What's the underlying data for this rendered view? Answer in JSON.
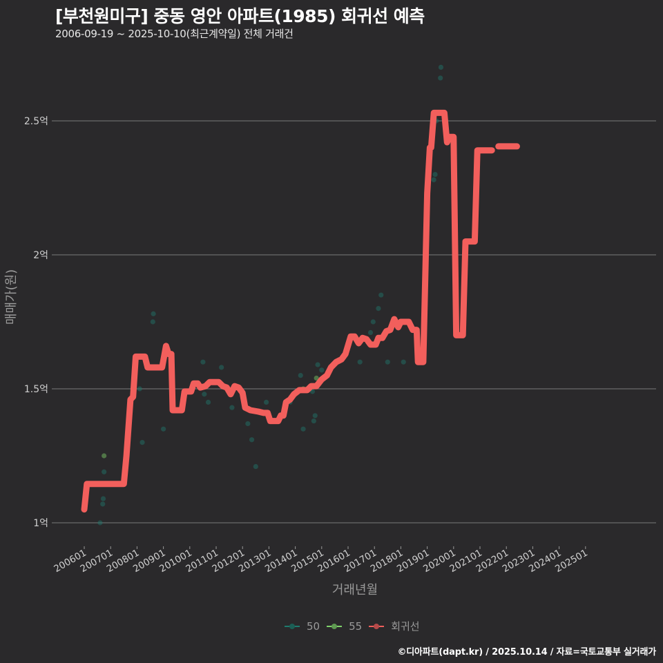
{
  "header": {
    "title": "[부천원미구] 중동 영안 아파트(1985) 회귀선 예측",
    "subtitle": "2006-09-19 ~ 2025-10-10(최근계약일) 전체 거래건"
  },
  "legend": {
    "items": [
      {
        "label": "50",
        "color": "#1f7a6e"
      },
      {
        "label": "55",
        "color": "#7fd36b"
      },
      {
        "label": "회귀선",
        "color": "#f25f5c"
      }
    ]
  },
  "caption": "©디아파트(dapt.kr) / 2025.10.14 / 자료=국토교통부 실거래가",
  "colors": {
    "background": "#2a292b",
    "grid": "#6b6b6b",
    "regression": "#f25f5c",
    "series_50": "#1f7a6e",
    "series_55": "#7fd36b"
  },
  "chart_data": {
    "type": "line",
    "title": "[부천원미구] 중동 영안 아파트(1985) 회귀선 예측",
    "subtitle": "2006-09-19 ~ 2025-10-10(최근계약일) 전체 거래건",
    "xlabel": "거래년월",
    "ylabel": "매매가(원)",
    "ylim": [
      0.9,
      2.78
    ],
    "yticks": [
      1,
      1.5,
      2,
      2.5
    ],
    "ytick_labels": [
      "1억",
      "1.5억",
      "2억",
      "2.5억"
    ],
    "xtick_labels": [
      "200601",
      "200701",
      "200801",
      "200901",
      "201001",
      "201101",
      "201201",
      "201301",
      "201401",
      "201501",
      "201601",
      "201701",
      "201801",
      "201901",
      "202001",
      "202101",
      "202201",
      "202301",
      "202401",
      "202501"
    ],
    "grid": "horizontal major only",
    "legend_position": "bottom",
    "legend_entries": [
      "50",
      "55",
      "회귀선"
    ],
    "series": [
      {
        "name": "회귀선",
        "kind": "line",
        "points": [
          [
            2006.0,
            1.05
          ],
          [
            2006.1,
            1.145
          ],
          [
            2007.3,
            1.145
          ],
          [
            2007.5,
            1.145
          ],
          [
            2007.6,
            1.25
          ],
          [
            2007.75,
            1.46
          ],
          [
            2007.85,
            1.47
          ],
          [
            2007.95,
            1.62
          ],
          [
            2008.3,
            1.62
          ],
          [
            2008.4,
            1.58
          ],
          [
            2008.95,
            1.58
          ],
          [
            2009.1,
            1.66
          ],
          [
            2009.2,
            1.63
          ],
          [
            2009.3,
            1.63
          ],
          [
            2009.35,
            1.42
          ],
          [
            2009.7,
            1.42
          ],
          [
            2009.8,
            1.49
          ],
          [
            2010.05,
            1.49
          ],
          [
            2010.15,
            1.52
          ],
          [
            2010.3,
            1.52
          ],
          [
            2010.4,
            1.505
          ],
          [
            2010.6,
            1.51
          ],
          [
            2010.75,
            1.525
          ],
          [
            2011.1,
            1.525
          ],
          [
            2011.25,
            1.51
          ],
          [
            2011.4,
            1.505
          ],
          [
            2011.55,
            1.48
          ],
          [
            2011.7,
            1.51
          ],
          [
            2011.85,
            1.505
          ],
          [
            2012.0,
            1.485
          ],
          [
            2012.1,
            1.43
          ],
          [
            2012.3,
            1.42
          ],
          [
            2012.6,
            1.415
          ],
          [
            2012.8,
            1.41
          ],
          [
            2012.95,
            1.41
          ],
          [
            2013.05,
            1.38
          ],
          [
            2013.35,
            1.38
          ],
          [
            2013.45,
            1.4
          ],
          [
            2013.55,
            1.4
          ],
          [
            2013.65,
            1.45
          ],
          [
            2013.8,
            1.46
          ],
          [
            2013.95,
            1.48
          ],
          [
            2014.15,
            1.495
          ],
          [
            2014.45,
            1.495
          ],
          [
            2014.6,
            1.51
          ],
          [
            2014.8,
            1.51
          ],
          [
            2015.0,
            1.535
          ],
          [
            2015.2,
            1.55
          ],
          [
            2015.35,
            1.58
          ],
          [
            2015.55,
            1.6
          ],
          [
            2015.75,
            1.61
          ],
          [
            2015.9,
            1.63
          ],
          [
            2016.1,
            1.695
          ],
          [
            2016.25,
            1.695
          ],
          [
            2016.4,
            1.67
          ],
          [
            2016.55,
            1.69
          ],
          [
            2016.7,
            1.685
          ],
          [
            2016.85,
            1.665
          ],
          [
            2017.05,
            1.665
          ],
          [
            2017.15,
            1.69
          ],
          [
            2017.3,
            1.69
          ],
          [
            2017.45,
            1.715
          ],
          [
            2017.6,
            1.72
          ],
          [
            2017.75,
            1.76
          ],
          [
            2017.9,
            1.73
          ],
          [
            2018.0,
            1.75
          ],
          [
            2018.3,
            1.75
          ],
          [
            2018.45,
            1.72
          ],
          [
            2018.6,
            1.72
          ],
          [
            2018.65,
            1.6
          ],
          [
            2018.85,
            1.6
          ],
          [
            2019.0,
            2.23
          ],
          [
            2019.1,
            2.4
          ],
          [
            2019.15,
            2.4
          ],
          [
            2019.25,
            2.53
          ],
          [
            2019.65,
            2.53
          ],
          [
            2019.75,
            2.42
          ],
          [
            2019.85,
            2.44
          ],
          [
            2020.0,
            2.44
          ],
          [
            2020.1,
            1.7
          ],
          [
            2020.35,
            1.7
          ],
          [
            2020.45,
            2.05
          ],
          [
            2020.8,
            2.05
          ],
          [
            2020.9,
            2.39
          ],
          [
            2021.45,
            2.39
          ]
        ]
      },
      {
        "name": "회귀선 (예측 구간)",
        "kind": "line",
        "points": [
          [
            2021.7,
            2.405
          ],
          [
            2022.4,
            2.405
          ]
        ]
      },
      {
        "name": "50",
        "kind": "scatter",
        "points": [
          [
            2006.6,
            1.0
          ],
          [
            2006.7,
            1.07
          ],
          [
            2006.72,
            1.09
          ],
          [
            2006.75,
            1.19
          ],
          [
            2008.1,
            1.5
          ],
          [
            2008.2,
            1.3
          ],
          [
            2008.6,
            1.75
          ],
          [
            2008.62,
            1.78
          ],
          [
            2009.0,
            1.35
          ],
          [
            2010.5,
            1.6
          ],
          [
            2010.55,
            1.48
          ],
          [
            2010.7,
            1.45
          ],
          [
            2011.2,
            1.58
          ],
          [
            2011.6,
            1.43
          ],
          [
            2012.2,
            1.37
          ],
          [
            2012.35,
            1.31
          ],
          [
            2012.5,
            1.21
          ],
          [
            2012.9,
            1.45
          ],
          [
            2013.8,
            1.45
          ],
          [
            2014.2,
            1.55
          ],
          [
            2014.3,
            1.35
          ],
          [
            2014.5,
            1.5
          ],
          [
            2014.6,
            1.5
          ],
          [
            2014.65,
            1.49
          ],
          [
            2014.7,
            1.38
          ],
          [
            2014.75,
            1.4
          ],
          [
            2014.85,
            1.59
          ],
          [
            2015.0,
            1.57
          ],
          [
            2016.45,
            1.6
          ],
          [
            2016.85,
            1.71
          ],
          [
            2016.95,
            1.75
          ],
          [
            2017.15,
            1.8
          ],
          [
            2017.25,
            1.85
          ],
          [
            2017.5,
            1.6
          ],
          [
            2018.1,
            1.6
          ],
          [
            2019.25,
            2.28
          ],
          [
            2019.3,
            2.3
          ],
          [
            2019.35,
            2.5
          ],
          [
            2019.5,
            2.66
          ],
          [
            2019.52,
            2.7
          ]
        ]
      },
      {
        "name": "55",
        "kind": "scatter",
        "points": [
          [
            2006.75,
            1.25
          ],
          [
            2014.3,
            1.5
          ],
          [
            2014.8,
            1.54
          ]
        ]
      }
    ]
  }
}
